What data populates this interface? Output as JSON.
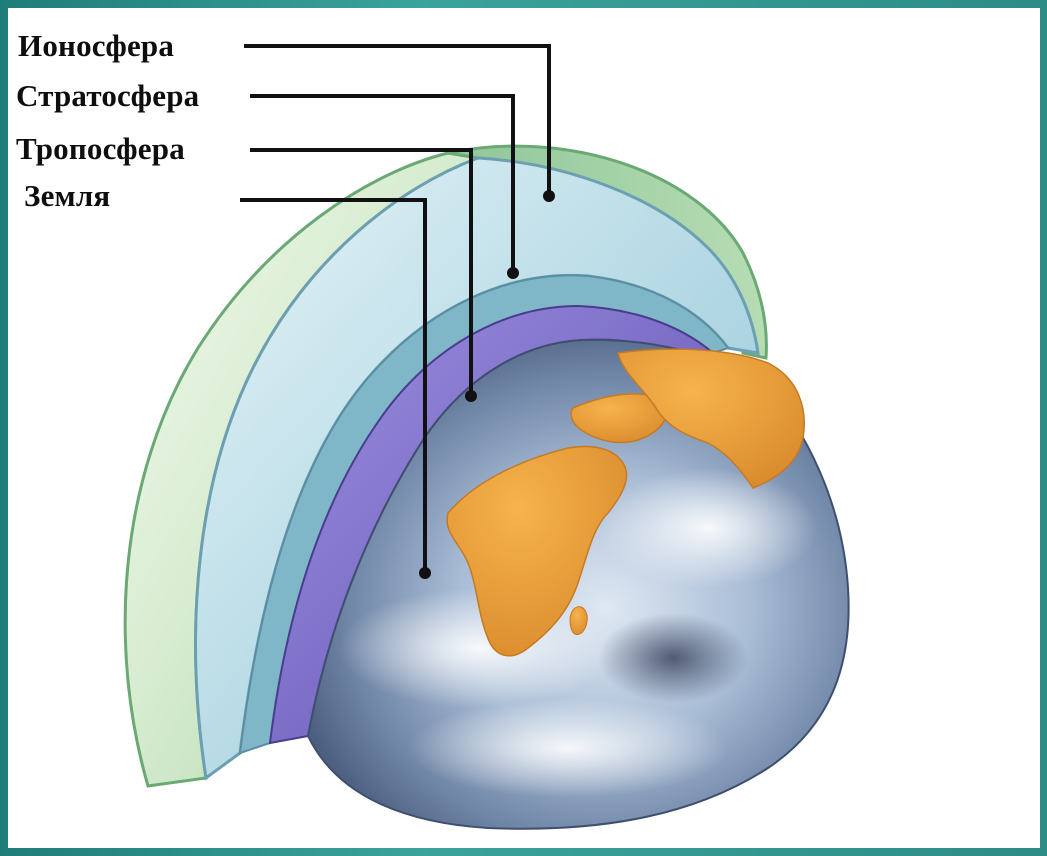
{
  "labels": {
    "ionosphere": "Ионосфера",
    "stratosphere": "Стратосфера",
    "troposphere": "Тропосфера",
    "earth": "Земля"
  },
  "colors": {
    "frame": "#2f8f8a",
    "background": "#ffffff",
    "ionosphere": "#c9e6c2",
    "stratosphere": "#b9dde6",
    "troposphere": "#7e70c4",
    "earth_ocean": "#8aa6c6",
    "land": "#e79b3a",
    "leader_lines": "#111111"
  }
}
